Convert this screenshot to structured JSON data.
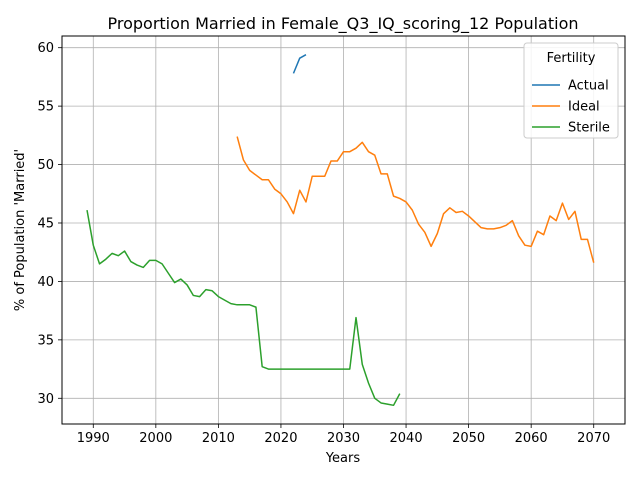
{
  "chart_data": {
    "type": "line",
    "title": "Proportion Married in Female_Q3_IQ_scoring_12 Population",
    "xlabel": "Years",
    "ylabel": "% of Population 'Married'",
    "xlim": [
      1985,
      2075
    ],
    "ylim": [
      27.8,
      61
    ],
    "xticks": [
      1990,
      2000,
      2010,
      2020,
      2030,
      2040,
      2050,
      2060,
      2070
    ],
    "yticks": [
      30,
      35,
      40,
      45,
      50,
      55,
      60
    ],
    "grid": true,
    "legend": {
      "title": "Fertility",
      "placement": "top-right"
    },
    "series": [
      {
        "name": "Actual",
        "color": "#1f77b4",
        "x": [
          2022,
          2023,
          2024
        ],
        "y": [
          57.8,
          59.1,
          59.4
        ]
      },
      {
        "name": "Ideal",
        "color": "#ff7f0e",
        "x": [
          2013,
          2014,
          2015,
          2016,
          2017,
          2018,
          2019,
          2020,
          2021,
          2022,
          2023,
          2024,
          2025,
          2026,
          2027,
          2028,
          2029,
          2030,
          2031,
          2032,
          2033,
          2034,
          2035,
          2036,
          2037,
          2038,
          2039,
          2040,
          2041,
          2042,
          2043,
          2044,
          2045,
          2046,
          2047,
          2048,
          2049,
          2050,
          2051,
          2052,
          2053,
          2054,
          2055,
          2056,
          2057,
          2058,
          2059,
          2060,
          2061,
          2062,
          2063,
          2064,
          2065,
          2066,
          2067,
          2068,
          2069,
          2070
        ],
        "y": [
          52.4,
          50.4,
          49.5,
          49.1,
          48.7,
          48.7,
          47.9,
          47.5,
          46.8,
          45.8,
          47.8,
          46.8,
          49.0,
          49.0,
          49.0,
          50.3,
          50.3,
          51.1,
          51.1,
          51.4,
          51.9,
          51.1,
          50.8,
          49.2,
          49.2,
          47.3,
          47.1,
          46.8,
          46.1,
          44.9,
          44.2,
          43.0,
          44.1,
          45.8,
          46.3,
          45.9,
          46.0,
          45.6,
          45.1,
          44.6,
          44.5,
          44.5,
          44.6,
          44.8,
          45.2,
          43.9,
          43.1,
          43.0,
          44.3,
          44.0,
          45.6,
          45.2,
          46.7,
          45.3,
          46.0,
          43.6,
          43.6,
          41.6
        ]
      },
      {
        "name": "Sterile",
        "color": "#2ca02c",
        "x": [
          1989,
          1990,
          1991,
          1992,
          1993,
          1994,
          1995,
          1996,
          1997,
          1998,
          1999,
          2000,
          2001,
          2002,
          2003,
          2004,
          2005,
          2006,
          2007,
          2008,
          2009,
          2010,
          2011,
          2012,
          2013,
          2014,
          2015,
          2016,
          2017,
          2018,
          2019,
          2020,
          2021,
          2022,
          2023,
          2024,
          2025,
          2026,
          2027,
          2028,
          2029,
          2030,
          2031,
          2032,
          2033,
          2034,
          2035,
          2036,
          2037,
          2038,
          2039
        ],
        "y": [
          46.1,
          43.1,
          41.5,
          41.9,
          42.4,
          42.2,
          42.6,
          41.7,
          41.4,
          41.2,
          41.8,
          41.8,
          41.5,
          40.7,
          39.9,
          40.2,
          39.7,
          38.8,
          38.7,
          39.3,
          39.2,
          38.7,
          38.4,
          38.1,
          38.0,
          38.0,
          38.0,
          37.8,
          32.7,
          32.5,
          32.5,
          32.5,
          32.5,
          32.5,
          32.5,
          32.5,
          32.5,
          32.5,
          32.5,
          32.5,
          32.5,
          32.5,
          32.5,
          36.9,
          32.9,
          31.3,
          30.0,
          29.6,
          29.5,
          29.4,
          30.4
        ]
      }
    ]
  }
}
